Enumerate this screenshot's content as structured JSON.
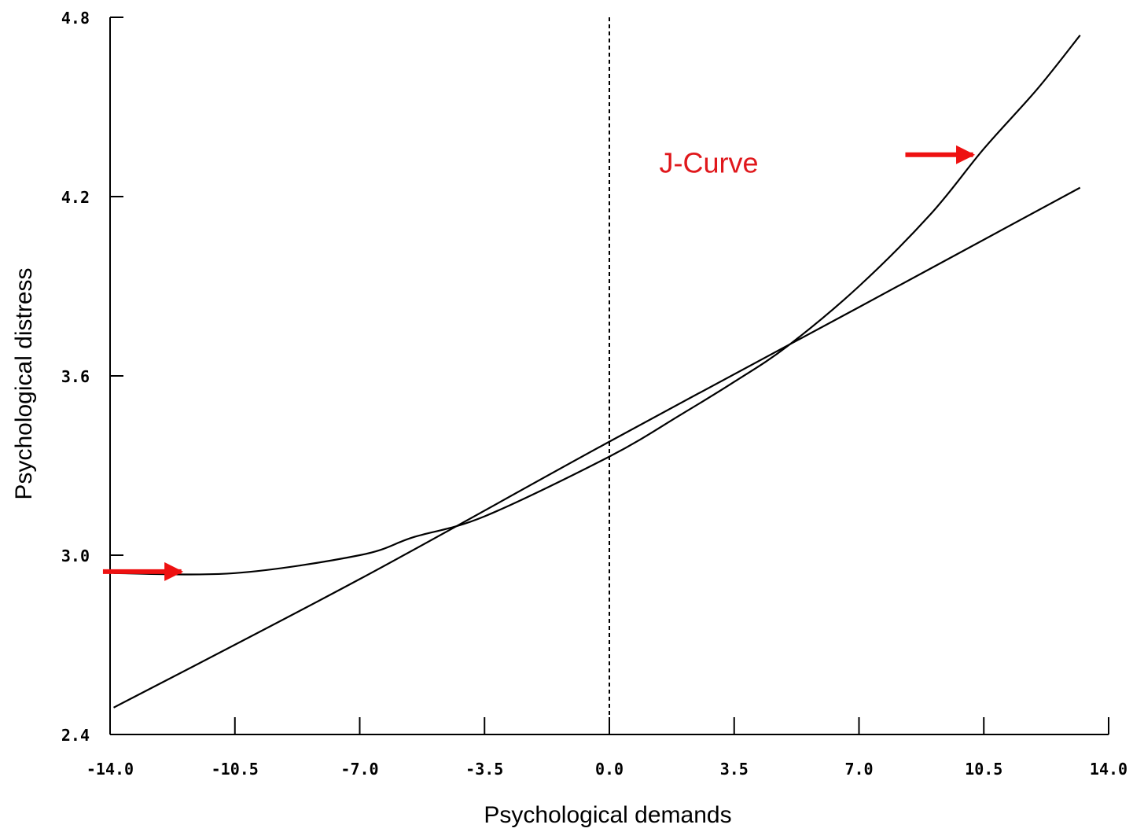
{
  "chart_data": {
    "type": "line",
    "xlabel": "Psychological demands",
    "ylabel": "Psychological distress",
    "xlim": [
      -14.0,
      14.0
    ],
    "ylim": [
      2.4,
      4.8
    ],
    "x_ticks": [
      "-14.0",
      "-10.5",
      "-7.0",
      "-3.5",
      "0.0",
      "3.5",
      "7.0",
      "10.5",
      "14.0"
    ],
    "y_ticks": [
      "2.4",
      "3.0",
      "3.6",
      "4.2",
      "4.8"
    ],
    "grid": false,
    "legend": "none",
    "reference_line": {
      "x": 0.0,
      "style": "dashed"
    },
    "series": [
      {
        "kind": "linear",
        "color": "#000000",
        "x": [
          -13.9,
          -7.0,
          0.0,
          7.0,
          13.2
        ],
        "y": [
          2.49,
          2.92,
          3.38,
          3.83,
          4.23
        ]
      },
      {
        "kind": "curve",
        "color": "#000000",
        "x": [
          -13.9,
          -10.5,
          -7.0,
          -5.5,
          -3.5,
          0.0,
          2.0,
          3.5,
          5.0,
          7.0,
          9.0,
          10.5,
          12.0,
          13.2
        ],
        "y": [
          2.94,
          2.94,
          3.0,
          3.06,
          3.13,
          3.33,
          3.47,
          3.58,
          3.7,
          3.9,
          4.14,
          4.36,
          4.56,
          4.74
        ]
      }
    ],
    "annotations": [
      {
        "text": "J-Curve",
        "x": 1.4,
        "y": 4.28,
        "color": "#e0181c"
      }
    ],
    "arrows": [
      {
        "from": [
          -14.2,
          2.945
        ],
        "to": [
          -12.0,
          2.945
        ],
        "color": "#ee1111"
      },
      {
        "from": [
          8.3,
          4.34
        ],
        "to": [
          10.2,
          4.34
        ],
        "color": "#ee1111"
      }
    ]
  }
}
